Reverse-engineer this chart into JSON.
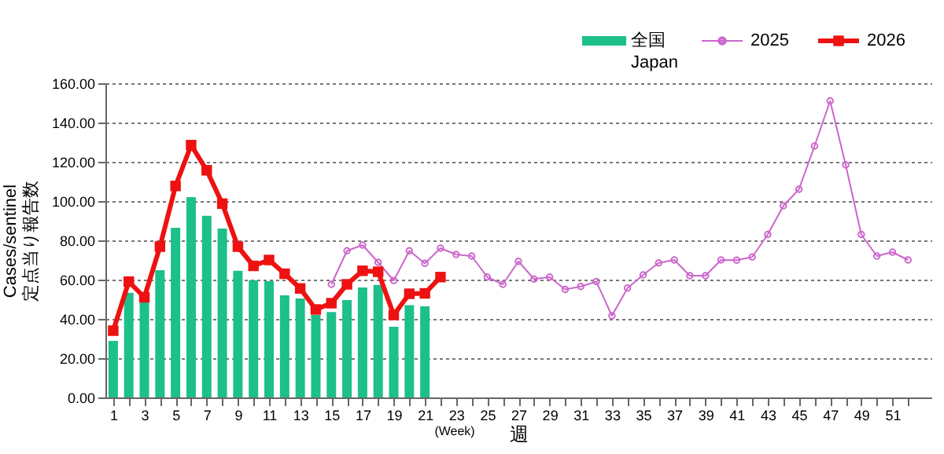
{
  "chart_data": {
    "type": "bar",
    "xlabel": "週",
    "ylabel": "Cases/sentinel\n定点当り報告数",
    "annotations": [
      "(Week)"
    ],
    "x": [
      1,
      2,
      3,
      4,
      5,
      6,
      7,
      8,
      9,
      10,
      11,
      12,
      13,
      14,
      15,
      16,
      17,
      18,
      19,
      20,
      21,
      22,
      23,
      24,
      25,
      26,
      27,
      28,
      29,
      30,
      31,
      32,
      33,
      34,
      35,
      36,
      37,
      38,
      39,
      40,
      41,
      42,
      43,
      44,
      45,
      46,
      47,
      48,
      49,
      50,
      51,
      52
    ],
    "series": [
      {
        "name": "全国\nJapan",
        "color": "#1dbf8a",
        "values": [
          28.8,
          53.3,
          48.8,
          64.8,
          86.4,
          102,
          92.5,
          86,
          64.5,
          59.7,
          59.2,
          52,
          50.4,
          42,
          43.5,
          49.6,
          56,
          57.3,
          36,
          47,
          46.4,
          null,
          null,
          null,
          null,
          null,
          null,
          null,
          null,
          null,
          null,
          null,
          null,
          null,
          null,
          null,
          null,
          null,
          null,
          null,
          null,
          null,
          null,
          null,
          null,
          null,
          null,
          null,
          null,
          null,
          null,
          null
        ]
      },
      {
        "name": "2025",
        "type": "line",
        "color": "#cc66cc",
        "marker": "circle",
        "values": [
          null,
          null,
          null,
          null,
          null,
          null,
          null,
          null,
          null,
          null,
          null,
          null,
          null,
          null,
          57.6,
          74.7,
          77.6,
          68.8,
          59.5,
          74.7,
          68.3,
          76,
          72.8,
          72,
          61.3,
          57.6,
          69.3,
          60.3,
          61.3,
          55,
          56.5,
          59,
          41.6,
          55.7,
          62.4,
          68.5,
          70,
          62,
          62,
          70,
          69.9,
          71.5,
          83,
          97.6,
          106,
          128,
          151,
          118.4,
          83,
          72,
          74,
          70
        ]
      },
      {
        "name": "2026",
        "type": "line",
        "color": "#ee1111",
        "marker": "square",
        "values": [
          34,
          59,
          51,
          76.8,
          107.7,
          128.5,
          115.7,
          98.7,
          76.8,
          67,
          70,
          63,
          55.5,
          44.8,
          48,
          57.6,
          64.5,
          64,
          42,
          52.8,
          53,
          61.3,
          null,
          null,
          null,
          null,
          null,
          null,
          null,
          null,
          null,
          null,
          null,
          null,
          null,
          null,
          null,
          null,
          null,
          null,
          null,
          null,
          null,
          null,
          null,
          null,
          null,
          null,
          null,
          null,
          null,
          null
        ]
      }
    ],
    "xlim": [
      0.5,
      53.5
    ],
    "xticks": [
      1,
      {
        "value": 2,
        "label": null
      },
      3,
      {
        "value": 4,
        "label": null
      },
      5,
      {
        "value": 6,
        "label": null
      },
      7,
      {
        "value": 8,
        "label": null
      },
      9,
      {
        "value": 10,
        "label": null
      },
      11,
      {
        "value": 12,
        "label": null
      },
      13,
      {
        "value": 14,
        "label": null
      },
      15,
      {
        "value": 16,
        "label": null
      },
      17,
      {
        "value": 18,
        "label": null
      },
      19,
      {
        "value": 20,
        "label": null
      },
      21,
      {
        "value": 22,
        "label": null
      },
      23,
      {
        "value": 24,
        "label": null
      },
      25,
      {
        "value": 26,
        "label": null
      },
      27,
      {
        "value": 28,
        "label": null
      },
      29,
      {
        "value": 30,
        "label": null
      },
      31,
      {
        "value": 32,
        "label": null
      },
      33,
      {
        "value": 34,
        "label": null
      },
      35,
      {
        "value": 36,
        "label": null
      },
      37,
      {
        "value": 38,
        "label": null
      },
      39,
      {
        "value": 40,
        "label": null
      },
      41,
      {
        "value": 42,
        "label": null
      },
      43,
      {
        "value": 44,
        "label": null
      },
      45,
      {
        "value": 46,
        "label": null
      },
      47,
      {
        "value": 48,
        "label": null
      },
      49,
      {
        "value": 50,
        "label": null
      },
      51,
      {
        "value": 52,
        "label": null
      }
    ],
    "ylim": [
      0,
      160
    ],
    "yticks": [
      {
        "value": 0,
        "label": "0.00"
      },
      {
        "value": 20,
        "label": "20.00"
      },
      {
        "value": 40,
        "label": "40.00"
      },
      {
        "value": 60,
        "label": "60.00"
      },
      {
        "value": 80,
        "label": "80.00"
      },
      {
        "value": 100,
        "label": "100.00"
      },
      {
        "value": 120,
        "label": "120.00"
      },
      {
        "value": 140,
        "label": "140.00"
      },
      {
        "value": 160,
        "label": "160.00"
      }
    ],
    "grid": "y",
    "legend": "top right"
  }
}
